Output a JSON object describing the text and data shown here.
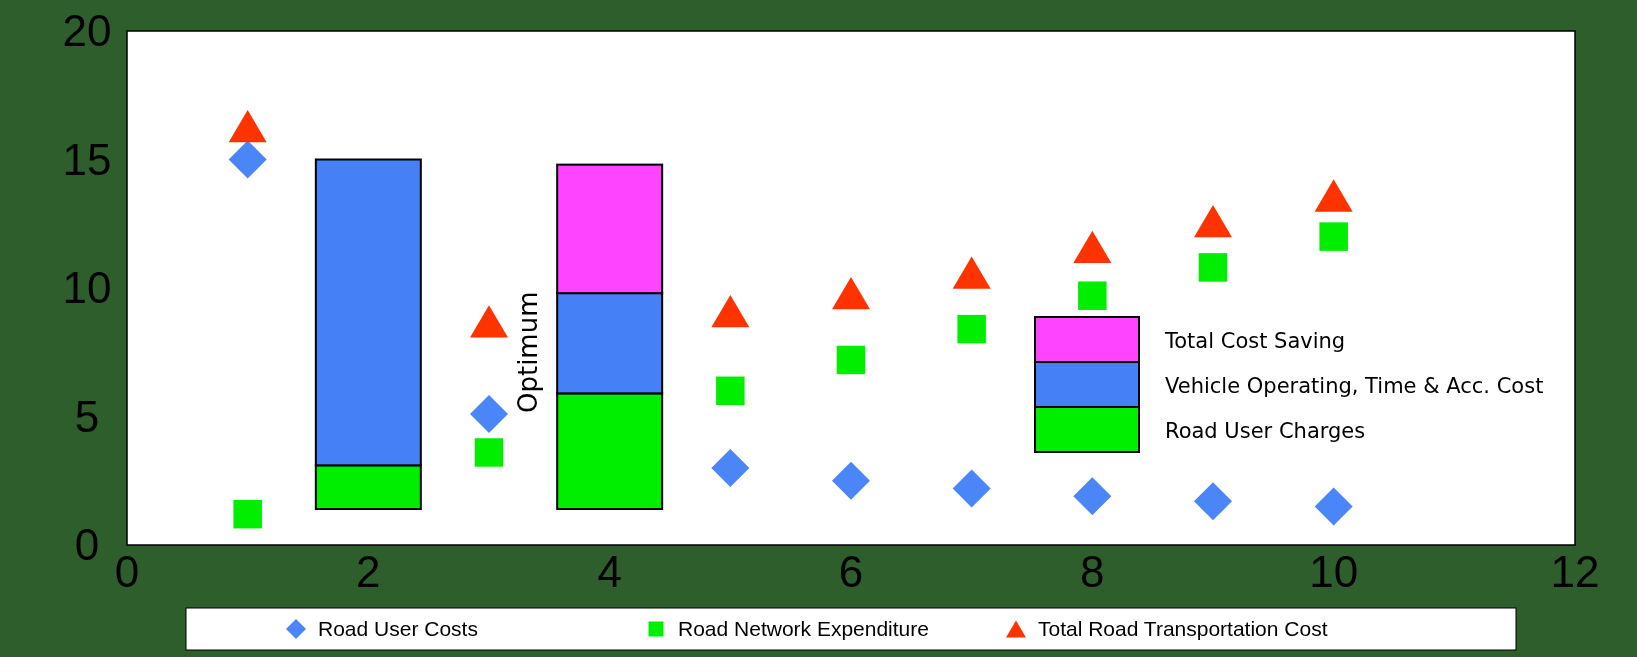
{
  "chart_data": {
    "type": "scatter",
    "xlim": [
      0,
      12
    ],
    "xticks": [
      0,
      2,
      4,
      6,
      8,
      10,
      12
    ],
    "ylim": [
      0,
      20
    ],
    "yticks": [
      0,
      5,
      10,
      15,
      20
    ],
    "grid": false,
    "legend": "bottom",
    "stacked": true,
    "annotations": [
      "Optimum"
    ],
    "series": [
      {
        "name": "Road User Costs",
        "color": "#4a86f7",
        "marker": "diamond",
        "x": [
          1,
          3,
          5,
          6,
          7,
          8,
          9,
          10
        ],
        "values": [
          15.0,
          5.1,
          3.0,
          2.5,
          2.2,
          1.9,
          1.7,
          1.5
        ]
      },
      {
        "name": "Road Network Expenditure",
        "color": "#00ee00",
        "marker": "square",
        "x": [
          1,
          3,
          5,
          6,
          7,
          8,
          9,
          10
        ],
        "values": [
          1.2,
          3.6,
          6.0,
          7.2,
          8.4,
          9.7,
          10.8,
          12.0
        ]
      },
      {
        "name": "Total Road Transportation Cost",
        "color": "#ff3300",
        "marker": "triangle",
        "x": [
          1,
          3,
          5,
          6,
          7,
          8,
          9,
          10
        ],
        "values": [
          16.3,
          8.7,
          9.1,
          9.8,
          10.6,
          11.6,
          12.6,
          13.6
        ]
      },
      {
        "name": "Road User Charges",
        "type": "bar",
        "color": "#00ee00",
        "x": [
          2,
          4
        ],
        "base": [
          1.4,
          1.4
        ],
        "values": [
          1.7,
          4.5
        ]
      },
      {
        "name": "Vehicle Operating, Time & Acc. Cost",
        "type": "bar",
        "color": "#4680f7",
        "x": [
          2,
          4
        ],
        "values": [
          11.9,
          3.9
        ]
      },
      {
        "name": "Total Cost Saving",
        "type": "bar",
        "color": "#ff44ff",
        "x": [
          2,
          4
        ],
        "values": [
          0,
          5.0
        ]
      }
    ]
  }
}
